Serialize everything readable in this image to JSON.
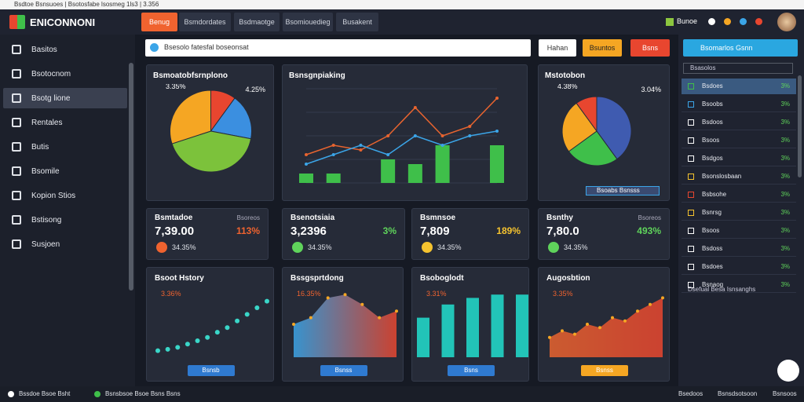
{
  "browser": {
    "url": "Bsdtoe Bsnsuoes | Bsotosfabe lsosmeg 1ls3 | 3.356"
  },
  "header": {
    "logo": "ENICONNONI",
    "tabs": [
      "Benug",
      "Bsmdordates",
      "Bsdmaotge",
      "Bsomiouedieg",
      "Busakent"
    ],
    "user": "Bunoe"
  },
  "sidebar": {
    "items": [
      "Basitos",
      "Bsotocnom",
      "Bsotg lione",
      "Rentales",
      "Butis",
      "Bsomile",
      "Kopion Stios",
      "Bstisong",
      "Susjoen"
    ],
    "active": 2
  },
  "toolbar": {
    "search": "Bsesolo fatesfal boseonsat",
    "buttons": [
      "Hahan",
      "Bsuntos",
      "Bsns"
    ]
  },
  "cards": [
    {
      "title": "Bsmoatobfsrnplono",
      "labels": [
        "3.35%",
        "4.25%"
      ],
      "type": "pie",
      "slices": [
        {
          "value": 10,
          "color": "#e8462f"
        },
        {
          "value": 18,
          "color": "#3b8fe0"
        },
        {
          "value": 42,
          "color": "#7cc23b"
        },
        {
          "value": 30,
          "color": "#f5a623"
        }
      ]
    },
    {
      "title": "Bsnsgnpiaking",
      "type": "line",
      "ylim": [
        0,
        10
      ],
      "series": [
        {
          "color": "#e8642f",
          "values": [
            3,
            4,
            3.5,
            5,
            8,
            5,
            6,
            9
          ]
        },
        {
          "color": "#3ba5e8",
          "values": [
            2,
            3,
            4,
            3,
            5,
            4,
            5,
            5.5
          ]
        }
      ],
      "bars": {
        "color": "#3fbf4a",
        "values": [
          1,
          1,
          0,
          2.5,
          2,
          4,
          0,
          4
        ]
      }
    },
    {
      "title": "Mstotobon",
      "labels": [
        "4.38%",
        "3.04%"
      ],
      "legend": "Bsoabs Bsnsss",
      "type": "pie",
      "slices": [
        {
          "value": 40,
          "color": "#3f5bb0"
        },
        {
          "value": 25,
          "color": "#3fbf4a"
        },
        {
          "value": 25,
          "color": "#f5a623"
        },
        {
          "value": 10,
          "color": "#e8462f"
        }
      ]
    }
  ],
  "stats": [
    {
      "title": "Bsmtadoe",
      "note": "Bsoreos",
      "value": "7,39.00",
      "change": "113%",
      "foot": "34.35%",
      "color": "#f0632f"
    },
    {
      "title": "Bsenotsiaia",
      "note": "",
      "value": "3,2396",
      "change": "3%",
      "foot": "34.35%",
      "color": "#5fd35b"
    },
    {
      "title": "Bsmnsoe",
      "note": "",
      "value": "7,809",
      "change": "189%",
      "foot": "34.35%",
      "color": "#f5c32f"
    },
    {
      "title": "Bsnthy",
      "note": "Bsoreos",
      "value": "7,80.0",
      "change": "493%",
      "foot": "34.35%",
      "color": "#5fd35b"
    }
  ],
  "charts": [
    {
      "title": "Bsoot Hstory",
      "label": "3.36%",
      "button": "Bsnsb",
      "type": "dots",
      "ylim": [
        0,
        10
      ],
      "color": "#3ad6c8",
      "values": [
        1,
        1.2,
        1.5,
        2,
        2.5,
        3,
        3.8,
        4.5,
        5.5,
        6.5,
        7.5,
        8.5
      ]
    },
    {
      "title": "Bssgsprtdong",
      "label": "16.35%",
      "button": "Bsnss",
      "type": "area",
      "ylim": [
        0,
        10
      ],
      "color": "#3ba5e8",
      "values": [
        5,
        6,
        9,
        9.5,
        8,
        6,
        7
      ]
    },
    {
      "title": "Bsoboglodt",
      "label": "3.31%",
      "button": "Bsns",
      "type": "bars",
      "ylim": [
        0,
        10
      ],
      "color": "#22c4b8",
      "values": [
        6,
        8,
        9,
        9.5,
        9.5
      ]
    },
    {
      "title": "Augosbtion",
      "label": "3.35%",
      "button": "Bsnss",
      "type": "area",
      "ylim": [
        0,
        10
      ],
      "color": "#e8642f",
      "values": [
        3,
        4,
        3.5,
        5,
        4.5,
        6,
        5.5,
        7,
        8,
        9
      ]
    }
  ],
  "right_panel": {
    "search": "Bsomarlos Gsnn",
    "filter": "Bsasolos",
    "items": [
      {
        "label": "Bsdoes",
        "value": "3%"
      },
      {
        "label": "Bsoobs",
        "value": "3%"
      },
      {
        "label": "Bsdoos",
        "value": "3%"
      },
      {
        "label": "Bsoos",
        "value": "3%"
      },
      {
        "label": "Bsdgos",
        "value": "3%"
      },
      {
        "label": "Bsonslosbaan",
        "value": "3%"
      },
      {
        "label": "Bsbsohe",
        "value": "3%"
      },
      {
        "label": "Bsnrsg",
        "value": "3%"
      },
      {
        "label": "Bsoos",
        "value": "3%"
      },
      {
        "label": "Bsdoss",
        "value": "3%"
      },
      {
        "label": "Bsdoes",
        "value": "3%"
      },
      {
        "label": "Bsnaog",
        "value": "3%"
      }
    ],
    "footer": "Dsefual Besa Isnsanghs"
  },
  "status_bar": {
    "left": "Bssdoe Bsoe Bsht",
    "middle": "Bsnsbsoe Bsoe Bsns Bsns",
    "right": [
      "Bsedoos",
      "Bsnsdsotsoon",
      "Bsnsoos"
    ]
  }
}
